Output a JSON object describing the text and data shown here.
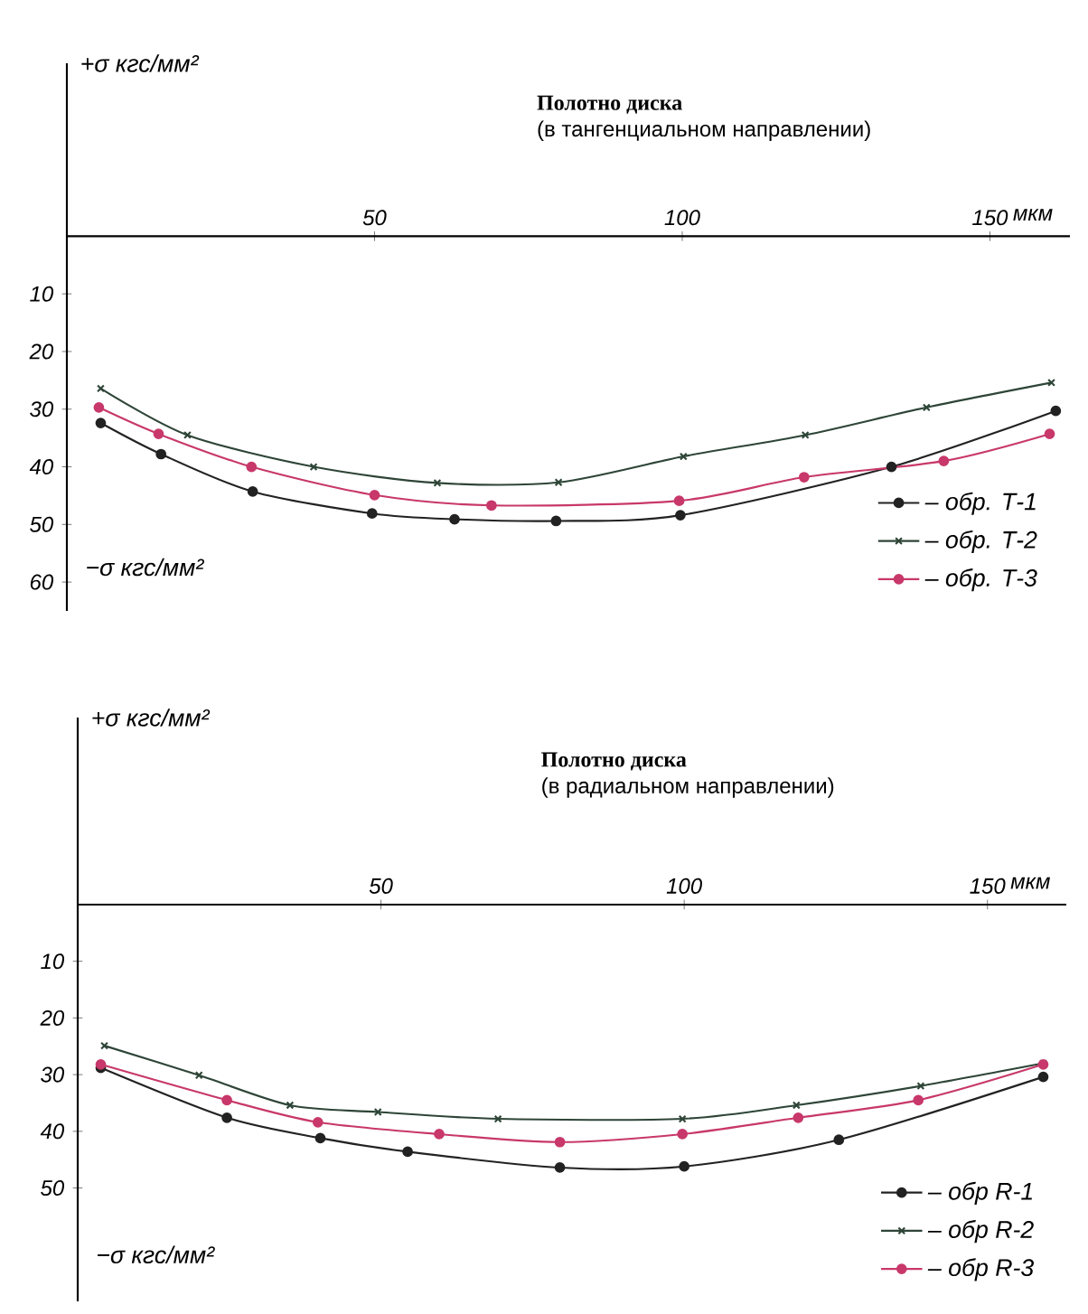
{
  "chart_data": [
    {
      "type": "line",
      "title": "Полотно диска",
      "subtitle": "(в тангенциальном направлении)",
      "ylabel": "+σ кгс/мм²",
      "xlabel": "мкм",
      "annotations": [
        "−σ кгс/мм²"
      ],
      "xlim": [
        0,
        163
      ],
      "xticks": [
        50,
        100,
        150
      ],
      "ylim": [
        65,
        -30
      ],
      "yticks": [
        10,
        20,
        30,
        40,
        50,
        60
      ],
      "legend": "bottom right",
      "line_style": "solid",
      "series": [
        {
          "name": "– обр. Т-1",
          "color": "#222222",
          "marker": "circle",
          "x": [
            5.5,
            15.3,
            30.2,
            49.6,
            63,
            79.5,
            99.7,
            134,
            160.7
          ],
          "values": [
            32.4,
            37.8,
            44.3,
            48.1,
            49.1,
            49.4,
            48.4,
            40,
            30.3
          ]
        },
        {
          "name": "– обр. Т-2",
          "color": "#2e4537",
          "marker": "cross",
          "x": [
            5.5,
            19.6,
            40.1,
            60.2,
            79.9,
            100.2,
            120,
            139.7,
            160
          ],
          "values": [
            26.4,
            34.5,
            40,
            42.8,
            42.7,
            38.2,
            34.5,
            29.7,
            25.4
          ]
        },
        {
          "name": "– обр. Т-3",
          "color": "#c8386a",
          "marker": "circle",
          "x": [
            5.2,
            14.9,
            30,
            50,
            69,
            99.5,
            119.8,
            142.5,
            159.7
          ],
          "values": [
            29.7,
            34.3,
            40,
            44.9,
            46.7,
            45.9,
            41.8,
            39,
            34.3
          ]
        }
      ]
    },
    {
      "type": "line",
      "title": "Полотно диска",
      "subtitle": "(в радиальном направлении)",
      "ylabel": "+σ кгс/мм²",
      "xlabel": "мкм",
      "annotations": [
        "−σ кгс/мм²"
      ],
      "xlim": [
        0,
        163
      ],
      "xticks": [
        50,
        100,
        150
      ],
      "ylim": [
        70,
        -33
      ],
      "yticks": [
        10,
        20,
        30,
        40,
        50
      ],
      "legend": "bottom right",
      "line_style": "solid",
      "series": [
        {
          "name": "– обр R-1",
          "color": "#222222",
          "marker": "circle",
          "x": [
            3.8,
            24.6,
            40,
            54.4,
            79.5,
            100,
            125.5,
            159.2
          ],
          "values": [
            28.8,
            37.6,
            41.2,
            43.6,
            46.4,
            46.2,
            41.5,
            30.4
          ]
        },
        {
          "name": "– обр R-2",
          "color": "#2e4537",
          "marker": "cross",
          "x": [
            4.4,
            20,
            35,
            49.5,
            69.3,
            99.7,
            118.5,
            139,
            159.2
          ],
          "values": [
            24.9,
            30.1,
            35.4,
            36.6,
            37.8,
            37.8,
            35.4,
            32,
            28
          ]
        },
        {
          "name": "– обр R-3",
          "color": "#c8386a",
          "marker": "circle",
          "x": [
            3.8,
            24.6,
            39.6,
            59.6,
            79.5,
            99.7,
            118.8,
            138.6,
            159.2
          ],
          "values": [
            28.2,
            34.5,
            38.4,
            40.5,
            41.9,
            40.5,
            37.6,
            34.5,
            28.2
          ]
        }
      ]
    }
  ]
}
